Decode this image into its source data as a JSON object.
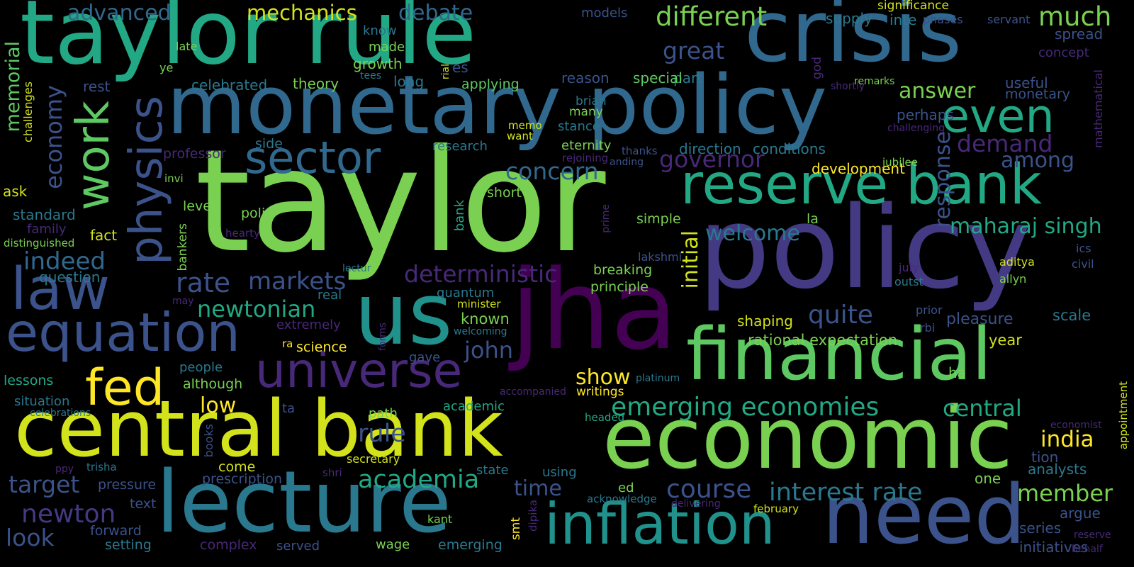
{
  "colors": {
    "background": "#000000",
    "lime": "#7ad151",
    "teal": "#22a884",
    "blue": "#31688e",
    "slate": "#3b528b",
    "purple": "#482878",
    "indigo": "#440154",
    "yellow": "#d2e21b",
    "cyan": "#21918c"
  },
  "words": [
    {
      "text": "taylor rule",
      "color": "#22a884"
    },
    {
      "text": "crisis",
      "color": "#31688e"
    },
    {
      "text": "monetary policy",
      "color": "#31688e"
    },
    {
      "text": "taylor",
      "color": "#7ad151"
    },
    {
      "text": "policy",
      "color": "#443a83"
    },
    {
      "text": "jha",
      "color": "#440154"
    },
    {
      "text": "us",
      "color": "#21918c"
    },
    {
      "text": "central bank",
      "color": "#d2e21b"
    },
    {
      "text": "economic",
      "color": "#7ad151"
    },
    {
      "text": "financial",
      "color": "#5ec962"
    },
    {
      "text": "lecture",
      "color": "#2a788e"
    },
    {
      "text": "need",
      "color": "#3b528b"
    },
    {
      "text": "inflation",
      "color": "#21918c"
    },
    {
      "text": "reserve bank",
      "color": "#22a884"
    },
    {
      "text": "equation",
      "color": "#3b528b"
    },
    {
      "text": "universe",
      "color": "#482878"
    },
    {
      "text": "sector",
      "color": "#31688e"
    },
    {
      "text": "law",
      "color": "#3b528b"
    },
    {
      "text": "physics",
      "color": "#3b528b"
    },
    {
      "text": "work",
      "color": "#5ec962"
    },
    {
      "text": "fed",
      "color": "#fde725"
    },
    {
      "text": "even",
      "color": "#22a884"
    },
    {
      "text": "much",
      "color": "#7ad151"
    },
    {
      "text": "different",
      "color": "#7ad151"
    },
    {
      "text": "emerging economies",
      "color": "#22a884"
    },
    {
      "text": "central",
      "color": "#22a884"
    },
    {
      "text": "interest rate",
      "color": "#2a788e"
    },
    {
      "text": "course",
      "color": "#3b528b"
    },
    {
      "text": "academia",
      "color": "#22a884"
    },
    {
      "text": "newton",
      "color": "#443a83"
    },
    {
      "text": "target",
      "color": "#3b528b"
    },
    {
      "text": "rule",
      "color": "#3b528b"
    },
    {
      "text": "maharaj singh",
      "color": "#22a884"
    },
    {
      "text": "governor",
      "color": "#482878"
    },
    {
      "text": "demand",
      "color": "#482878"
    },
    {
      "text": "answer",
      "color": "#7ad151"
    },
    {
      "text": "welcome",
      "color": "#2a788e"
    },
    {
      "text": "quite",
      "color": "#3b528b"
    },
    {
      "text": "deterministic",
      "color": "#482878"
    },
    {
      "text": "newtonian",
      "color": "#22a884"
    },
    {
      "text": "rate",
      "color": "#3b528b"
    },
    {
      "text": "markets",
      "color": "#3b528b"
    },
    {
      "text": "indeed",
      "color": "#31688e"
    },
    {
      "text": "economy",
      "color": "#3b528b"
    },
    {
      "text": "memorial",
      "color": "#5ec962"
    },
    {
      "text": "concern",
      "color": "#31688e"
    },
    {
      "text": "great",
      "color": "#3b528b"
    },
    {
      "text": "advanced",
      "color": "#31688e"
    },
    {
      "text": "mechanics",
      "color": "#d2e21b"
    },
    {
      "text": "debate",
      "color": "#31688e"
    },
    {
      "text": "among",
      "color": "#3b528b"
    },
    {
      "text": "response",
      "color": "#3b528b"
    },
    {
      "text": "initial",
      "color": "#d2e21b"
    },
    {
      "text": "rational expectation",
      "color": "#7ad151"
    },
    {
      "text": "year",
      "color": "#d2e21b"
    },
    {
      "text": "india",
      "color": "#fde725"
    },
    {
      "text": "member",
      "color": "#7ad151"
    },
    {
      "text": "time",
      "color": "#3b528b"
    },
    {
      "text": "john",
      "color": "#3b528b"
    },
    {
      "text": "show",
      "color": "#fde725"
    },
    {
      "text": "low",
      "color": "#fde725"
    },
    {
      "text": "look",
      "color": "#3b528b"
    },
    {
      "text": "pleasure",
      "color": "#3b528b"
    },
    {
      "text": "scale",
      "color": "#2a788e"
    },
    {
      "text": "analysts",
      "color": "#2a788e"
    },
    {
      "text": "tion",
      "color": "#3b528b"
    },
    {
      "text": "one",
      "color": "#7ad151"
    },
    {
      "text": "argue",
      "color": "#3b528b"
    },
    {
      "text": "series",
      "color": "#3b528b"
    },
    {
      "text": "initiatives",
      "color": "#3b528b"
    },
    {
      "text": "spread",
      "color": "#3b528b"
    },
    {
      "text": "concept",
      "color": "#482878"
    },
    {
      "text": "useful",
      "color": "#3b528b"
    },
    {
      "text": "monetary",
      "color": "#3b528b"
    },
    {
      "text": "perhaps",
      "color": "#3b528b"
    },
    {
      "text": "conditions",
      "color": "#2a788e"
    },
    {
      "text": "direction",
      "color": "#2a788e"
    },
    {
      "text": "development",
      "color": "#fde725"
    },
    {
      "text": "supply",
      "color": "#2a788e"
    },
    {
      "text": "inte",
      "color": "#2a788e"
    },
    {
      "text": "phases",
      "color": "#3b528b"
    },
    {
      "text": "significance",
      "color": "#d2e21b"
    },
    {
      "text": "servant",
      "color": "#3b528b"
    },
    {
      "text": "models",
      "color": "#3b528b"
    },
    {
      "text": "part",
      "color": "#2a788e"
    },
    {
      "text": "es",
      "color": "#3b528b"
    },
    {
      "text": "god",
      "color": "#482878"
    },
    {
      "text": "shortly",
      "color": "#482878"
    },
    {
      "text": "remarks",
      "color": "#7ad151"
    },
    {
      "text": "reason",
      "color": "#3b528b"
    },
    {
      "text": "special",
      "color": "#5ec962"
    },
    {
      "text": "brian",
      "color": "#2a788e"
    },
    {
      "text": "many",
      "color": "#7ad151"
    },
    {
      "text": "stance",
      "color": "#2a788e"
    },
    {
      "text": "eternity",
      "color": "#7ad151"
    },
    {
      "text": "thanks",
      "color": "#3b528b"
    },
    {
      "text": "rejoining",
      "color": "#482878"
    },
    {
      "text": "anding",
      "color": "#3b528b"
    },
    {
      "text": "challenging",
      "color": "#482878"
    },
    {
      "text": "jubilee",
      "color": "#7ad151"
    },
    {
      "text": "mathematical",
      "color": "#482878"
    },
    {
      "text": "ics",
      "color": "#3b528b"
    },
    {
      "text": "civil",
      "color": "#3b528b"
    },
    {
      "text": "aditya",
      "color": "#d2e21b"
    },
    {
      "text": "allyn",
      "color": "#7ad151"
    },
    {
      "text": "july",
      "color": "#482878"
    },
    {
      "text": "outst",
      "color": "#2a788e"
    },
    {
      "text": "prior",
      "color": "#3b528b"
    },
    {
      "text": "rbi",
      "color": "#3b528b"
    },
    {
      "text": "ha",
      "color": "#7ad151"
    },
    {
      "text": "appointment",
      "color": "#d2e21b"
    },
    {
      "text": "economist",
      "color": "#482878"
    },
    {
      "text": "reserve",
      "color": "#482878"
    },
    {
      "text": "behalf",
      "color": "#482878"
    },
    {
      "text": "know",
      "color": "#2a788e"
    },
    {
      "text": "made",
      "color": "#7ad151"
    },
    {
      "text": "growth",
      "color": "#7ad151"
    },
    {
      "text": "theory",
      "color": "#7ad151"
    },
    {
      "text": "celebrated",
      "color": "#2a788e"
    },
    {
      "text": "long",
      "color": "#2a788e"
    },
    {
      "text": "applying",
      "color": "#5ec962"
    },
    {
      "text": "tees",
      "color": "#2a788e"
    },
    {
      "text": "rial",
      "color": "#d2e21b"
    },
    {
      "text": "late",
      "color": "#7ad151"
    },
    {
      "text": "ye",
      "color": "#7ad151"
    },
    {
      "text": "rest",
      "color": "#3b528b"
    },
    {
      "text": "challenges",
      "color": "#d2e21b"
    },
    {
      "text": "ask",
      "color": "#d2e21b"
    },
    {
      "text": "standard",
      "color": "#2a788e"
    },
    {
      "text": "family",
      "color": "#482878"
    },
    {
      "text": "distinguished",
      "color": "#7ad151"
    },
    {
      "text": "question",
      "color": "#2a788e"
    },
    {
      "text": "fact",
      "color": "#d2e21b"
    },
    {
      "text": "invi",
      "color": "#7ad151"
    },
    {
      "text": "level",
      "color": "#7ad151"
    },
    {
      "text": "polic",
      "color": "#7ad151"
    },
    {
      "text": "professor",
      "color": "#482878"
    },
    {
      "text": "side",
      "color": "#2a788e"
    },
    {
      "text": "research",
      "color": "#2a788e"
    },
    {
      "text": "memo",
      "color": "#d2e21b"
    },
    {
      "text": "want",
      "color": "#d2e21b"
    },
    {
      "text": "short",
      "color": "#7ad151"
    },
    {
      "text": "bank",
      "color": "#22a884"
    },
    {
      "text": "bankers",
      "color": "#7ad151"
    },
    {
      "text": "hearty",
      "color": "#482878"
    },
    {
      "text": "prime",
      "color": "#482878"
    },
    {
      "text": "simple",
      "color": "#7ad151"
    },
    {
      "text": "la",
      "color": "#7ad151"
    },
    {
      "text": "lakshmi",
      "color": "#3b528b"
    },
    {
      "text": "breaking",
      "color": "#7ad151"
    },
    {
      "text": "principle",
      "color": "#7ad151"
    },
    {
      "text": "lectur",
      "color": "#2a788e"
    },
    {
      "text": "quantum",
      "color": "#2a788e"
    },
    {
      "text": "real",
      "color": "#2a788e"
    },
    {
      "text": "may",
      "color": "#482878"
    },
    {
      "text": "minister",
      "color": "#d2e21b"
    },
    {
      "text": "known",
      "color": "#7ad151"
    },
    {
      "text": "welcoming",
      "color": "#2a788e"
    },
    {
      "text": "extremely",
      "color": "#482878"
    },
    {
      "text": "forms",
      "color": "#482878"
    },
    {
      "text": "shaping",
      "color": "#d2e21b"
    },
    {
      "text": "ra",
      "color": "#fde725"
    },
    {
      "text": "science",
      "color": "#fde725"
    },
    {
      "text": "gave",
      "color": "#3b528b"
    },
    {
      "text": "people",
      "color": "#2a788e"
    },
    {
      "text": "although",
      "color": "#7ad151"
    },
    {
      "text": "lessons",
      "color": "#22a884"
    },
    {
      "text": "situation",
      "color": "#2a788e"
    },
    {
      "text": "celebrations",
      "color": "#2a788e"
    },
    {
      "text": "platinum",
      "color": "#2a788e"
    },
    {
      "text": "writings",
      "color": "#fde725"
    },
    {
      "text": "accompanied",
      "color": "#482878"
    },
    {
      "text": "ta",
      "color": "#3b528b"
    },
    {
      "text": "path",
      "color": "#7ad151"
    },
    {
      "text": "academic",
      "color": "#22a884"
    },
    {
      "text": "headed",
      "color": "#22a884"
    },
    {
      "text": "books",
      "color": "#3b528b"
    },
    {
      "text": "secretary",
      "color": "#d2e21b"
    },
    {
      "text": "ppy",
      "color": "#482878"
    },
    {
      "text": "trisha",
      "color": "#2a788e"
    },
    {
      "text": "shri",
      "color": "#482878"
    },
    {
      "text": "come",
      "color": "#d2e21b"
    },
    {
      "text": "prescription",
      "color": "#3b528b"
    },
    {
      "text": "state",
      "color": "#2a788e"
    },
    {
      "text": "using",
      "color": "#2a788e"
    },
    {
      "text": "pressure",
      "color": "#3b528b"
    },
    {
      "text": "text",
      "color": "#3b528b"
    },
    {
      "text": "ed",
      "color": "#7ad151"
    },
    {
      "text": "acknowledge",
      "color": "#2a788e"
    },
    {
      "text": "dipika",
      "color": "#482878"
    },
    {
      "text": "delivering",
      "color": "#482878"
    },
    {
      "text": "smt",
      "color": "#fde725"
    },
    {
      "text": "kant",
      "color": "#7ad151"
    },
    {
      "text": "february",
      "color": "#d2e21b"
    },
    {
      "text": "forward",
      "color": "#3b528b"
    },
    {
      "text": "setting",
      "color": "#2a788e"
    },
    {
      "text": "complex",
      "color": "#482878"
    },
    {
      "text": "served",
      "color": "#3b528b"
    },
    {
      "text": "wage",
      "color": "#7ad151"
    },
    {
      "text": "emerging",
      "color": "#2a788e"
    }
  ]
}
